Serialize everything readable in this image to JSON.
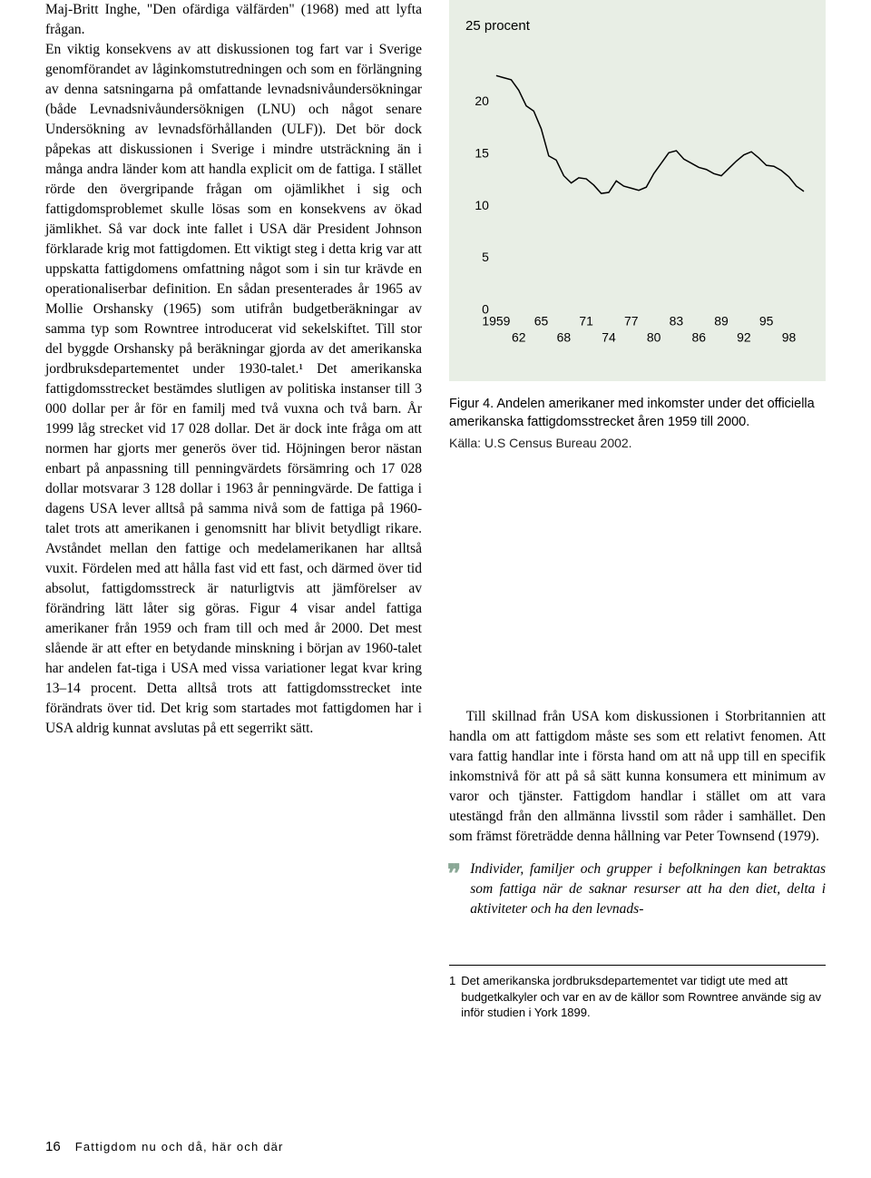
{
  "leftColumn": {
    "text": "Maj-Britt Inghe, \"Den ofärdiga välfärden\" (1968) med att lyfta frågan.\n   En viktig konsekvens av att diskussionen tog fart var i Sverige genomförandet av låginkomstutredningen och som en förlängning av denna satsningarna på omfattande levnadsnivåundersökningar (både Levnadsnivåundersöknigen (LNU) och något senare Undersökning av levnadsförhållanden (ULF)). Det bör dock påpekas att diskussionen i Sverige i mindre utsträckning än i många andra länder kom att handla explicit om de fattiga. I stället rörde den övergripande frågan om ojämlikhet i sig och fattigdomsproblemet skulle lösas som en konsekvens av ökad jämlikhet. Så var dock inte fallet i USA där President Johnson förklarade krig mot fattigdomen. Ett viktigt steg i detta krig var att uppskatta fattigdomens omfattning något som i sin tur krävde en operationaliserbar definition. En sådan presenterades år 1965 av Mollie Orshansky (1965) som utifrån budgetberäkningar av samma typ som Rowntree introducerat vid sekelskiftet. Till stor del byggde Orshansky på beräkningar gjorda av det amerikanska jordbruksdepartementet under 1930-talet.¹ Det amerikanska fattigdomsstrecket bestämdes slutligen av politiska instanser till 3 000 dollar per år för en familj med två vuxna och två barn. År 1999 låg strecket vid 17 028 dollar. Det är dock inte fråga om att normen har gjorts mer generös över tid. Höjningen beror nästan enbart på anpassning till penningvärdets försämring och 17 028 dollar motsvarar 3 128 dollar i 1963 år penningvärde. De fattiga i dagens USA lever alltså på samma nivå som de fattiga på 1960-talet trots att amerikanen i genomsnitt har blivit betydligt rikare. Avståndet mellan den fattige och medelamerikanen har alltså vuxit. Fördelen med att hålla fast vid ett fast, och därmed över tid absolut, fattigdomsstreck är naturligtvis att jämförelser av förändring lätt låter sig göras. Figur 4 visar andel fattiga amerikaner från 1959 och fram till och med år 2000. Det mest slående är att efter en betydande minskning i början av 1960-talet har andelen fat-tiga i USA med vissa variationer legat kvar kring 13–14 procent. Detta alltså trots att fattigdomsstrecket inte förändrats över tid. Det krig som startades mot fattigdomen har i USA aldrig kunnat avslutas på ett segerrikt sätt."
  },
  "chart": {
    "type": "line",
    "title": "25 procent",
    "background_color": "#e8eee5",
    "line_color": "#000000",
    "line_width": 1.5,
    "ylim": [
      0,
      25
    ],
    "yticks": [
      0,
      5,
      10,
      15,
      20
    ],
    "ytick_labels": [
      "0",
      "5",
      "10",
      "15",
      "20"
    ],
    "xlim": [
      1959,
      2000
    ],
    "xticks_top": [
      1959,
      1965,
      1971,
      1977,
      1983,
      1989,
      1995
    ],
    "xtick_labels_top": [
      "1959",
      "65",
      "71",
      "77",
      "83",
      "89",
      "95"
    ],
    "xticks_bottom": [
      1962,
      1968,
      1974,
      1980,
      1986,
      1992,
      1998
    ],
    "xtick_labels_bottom": [
      "62",
      "68",
      "74",
      "80",
      "86",
      "92",
      "98"
    ],
    "tick_fontsize": 14,
    "tick_font": "Arial",
    "data": [
      {
        "x": 1959,
        "y": 22.4
      },
      {
        "x": 1960,
        "y": 22.2
      },
      {
        "x": 1961,
        "y": 22.0
      },
      {
        "x": 1962,
        "y": 21.0
      },
      {
        "x": 1963,
        "y": 19.5
      },
      {
        "x": 1964,
        "y": 19.0
      },
      {
        "x": 1965,
        "y": 17.3
      },
      {
        "x": 1966,
        "y": 14.7
      },
      {
        "x": 1967,
        "y": 14.3
      },
      {
        "x": 1968,
        "y": 12.8
      },
      {
        "x": 1969,
        "y": 12.1
      },
      {
        "x": 1970,
        "y": 12.6
      },
      {
        "x": 1971,
        "y": 12.5
      },
      {
        "x": 1972,
        "y": 11.9
      },
      {
        "x": 1973,
        "y": 11.1
      },
      {
        "x": 1974,
        "y": 11.2
      },
      {
        "x": 1975,
        "y": 12.3
      },
      {
        "x": 1976,
        "y": 11.8
      },
      {
        "x": 1977,
        "y": 11.6
      },
      {
        "x": 1978,
        "y": 11.4
      },
      {
        "x": 1979,
        "y": 11.7
      },
      {
        "x": 1980,
        "y": 13.0
      },
      {
        "x": 1981,
        "y": 14.0
      },
      {
        "x": 1982,
        "y": 15.0
      },
      {
        "x": 1983,
        "y": 15.2
      },
      {
        "x": 1984,
        "y": 14.4
      },
      {
        "x": 1985,
        "y": 14.0
      },
      {
        "x": 1986,
        "y": 13.6
      },
      {
        "x": 1987,
        "y": 13.4
      },
      {
        "x": 1988,
        "y": 13.0
      },
      {
        "x": 1989,
        "y": 12.8
      },
      {
        "x": 1990,
        "y": 13.5
      },
      {
        "x": 1991,
        "y": 14.2
      },
      {
        "x": 1992,
        "y": 14.8
      },
      {
        "x": 1993,
        "y": 15.1
      },
      {
        "x": 1994,
        "y": 14.5
      },
      {
        "x": 1995,
        "y": 13.8
      },
      {
        "x": 1996,
        "y": 13.7
      },
      {
        "x": 1997,
        "y": 13.3
      },
      {
        "x": 1998,
        "y": 12.7
      },
      {
        "x": 1999,
        "y": 11.8
      },
      {
        "x": 2000,
        "y": 11.3
      }
    ],
    "caption": "Figur 4. Andelen amerikaner med inkomster under det officiella amerikanska fattigdomsstrecket åren 1959 till 2000.",
    "source": "Källa: U.S Census Bureau 2002."
  },
  "rightBody": {
    "p1": "Till skillnad från USA kom diskussionen i Storbritannien att handla om att fattigdom måste ses som ett relativt fenomen. Att vara fattig handlar inte i första hand om att nå upp till en specifik inkomstnivå för att på så sätt kunna konsumera ett minimum av varor och tjänster. Fattigdom handlar i stället om att vara utestängd från den allmänna livsstil som råder i samhället. Den som främst företrädde denna hållning var Peter Townsend (1979).",
    "quote": "Individer, familjer och grupper i befolkningen kan betraktas som fattiga när de saknar resurser att ha den diet, delta i aktiviteter och ha den levnads-"
  },
  "footnote": {
    "num": "1",
    "text": "Det amerikanska jordbruksdepartementet var tidigt ute med att budgetkalkyler och var en av de källor som Rowntree använde sig av inför studien i York 1899."
  },
  "footer": {
    "pageNum": "16",
    "title": "Fattigdom nu och då, här och där"
  }
}
